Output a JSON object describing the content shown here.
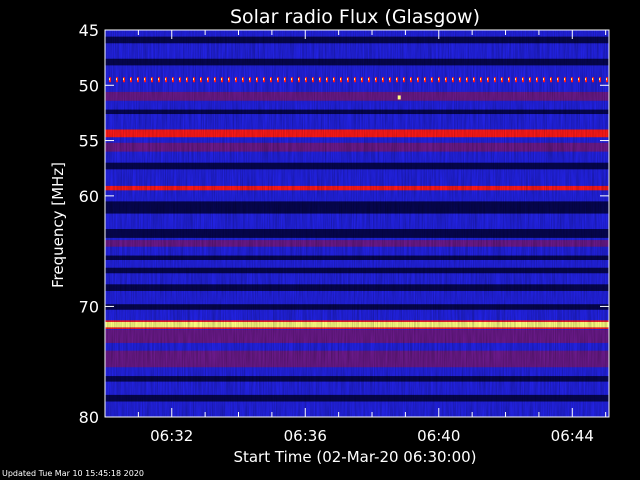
{
  "footer_text": "Updated Tue Mar 10 15:45:18 2020",
  "chart_data": {
    "type": "heatmap",
    "title": "Solar radio Flux (Glasgow)",
    "xlabel": "Start Time (02-Mar-20 06:30:00)",
    "ylabel": "Frequency [MHz]",
    "x_unit": "minutes after 06:30:00",
    "xlim": [
      0,
      15.1
    ],
    "ylim": [
      80,
      45
    ],
    "x_ticks": [
      {
        "value": 2,
        "label": "06:32"
      },
      {
        "value": 6,
        "label": "06:36"
      },
      {
        "value": 10,
        "label": "06:40"
      },
      {
        "value": 14,
        "label": "06:44"
      }
    ],
    "y_ticks": [
      {
        "value": 45,
        "label": "45"
      },
      {
        "value": 50,
        "label": "50"
      },
      {
        "value": 55,
        "label": "55"
      },
      {
        "value": 60,
        "label": "60"
      },
      {
        "value": 70,
        "label": "70"
      },
      {
        "value": 80,
        "label": "80"
      }
    ],
    "colors": {
      "background": "#2222e0",
      "quiet": "#060650",
      "moderate": "#6a1a8a",
      "strong": "#ff1a1a",
      "peak": "#ffff80"
    },
    "bands": [
      {
        "from": 45.6,
        "to": 46.2,
        "level": "quiet"
      },
      {
        "from": 47.6,
        "to": 48.2,
        "level": "quiet"
      },
      {
        "from": 49.1,
        "to": 49.8,
        "level": "strong-dotted"
      },
      {
        "from": 50.6,
        "to": 51.4,
        "level": "moderate"
      },
      {
        "from": 52.2,
        "to": 52.6,
        "level": "quiet"
      },
      {
        "from": 54.0,
        "to": 54.7,
        "level": "strong"
      },
      {
        "from": 55.2,
        "to": 56.0,
        "level": "moderate"
      },
      {
        "from": 57.0,
        "to": 57.6,
        "level": "quiet"
      },
      {
        "from": 59.1,
        "to": 59.5,
        "level": "strong"
      },
      {
        "from": 60.5,
        "to": 61.6,
        "level": "quiet"
      },
      {
        "from": 63.0,
        "to": 63.8,
        "level": "quiet"
      },
      {
        "from": 64.0,
        "to": 64.6,
        "level": "moderate"
      },
      {
        "from": 65.4,
        "to": 65.8,
        "level": "quiet"
      },
      {
        "from": 66.5,
        "to": 67.0,
        "level": "quiet"
      },
      {
        "from": 68.0,
        "to": 68.6,
        "level": "quiet"
      },
      {
        "from": 69.8,
        "to": 70.3,
        "level": "quiet"
      },
      {
        "from": 71.4,
        "to": 71.9,
        "level": "peak"
      },
      {
        "from": 72.1,
        "to": 73.3,
        "level": "moderate"
      },
      {
        "from": 74.0,
        "to": 75.5,
        "level": "moderate"
      },
      {
        "from": 76.3,
        "to": 76.8,
        "level": "quiet"
      },
      {
        "from": 78.0,
        "to": 78.6,
        "level": "quiet"
      }
    ],
    "annotations": [
      {
        "x": 8.8,
        "y": 51.1,
        "level": "peak"
      }
    ]
  }
}
